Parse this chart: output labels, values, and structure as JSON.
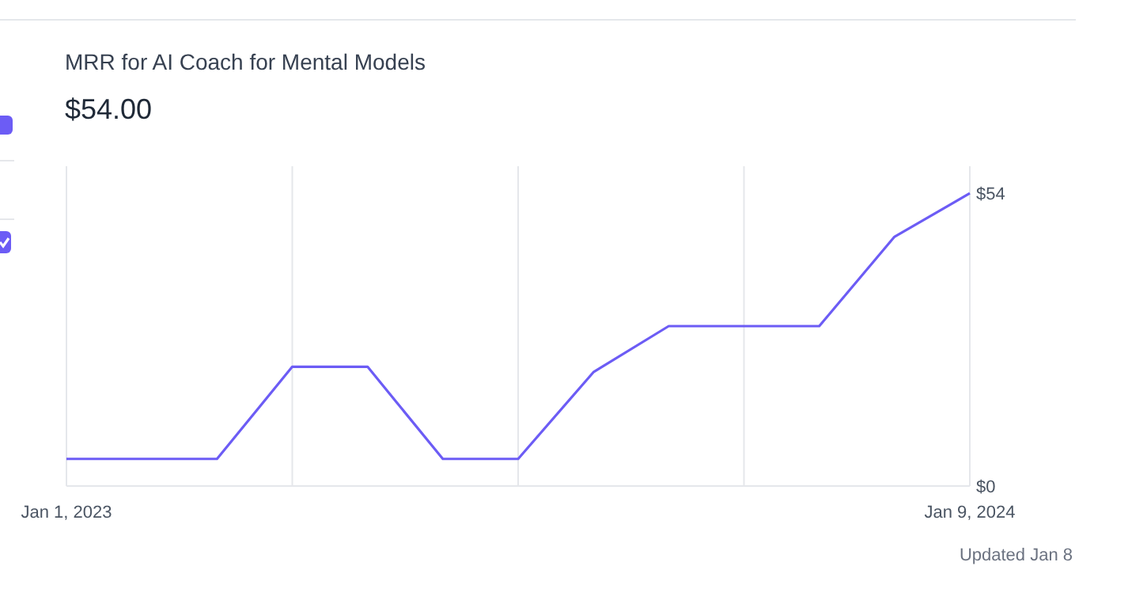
{
  "chart_data": {
    "type": "line",
    "title": "MRR for AI Coach for Mental Models",
    "subtitle": "$54.00",
    "categories": [
      "Jan 1, 2023",
      null,
      null,
      null,
      null,
      null,
      null,
      null,
      null,
      null,
      null,
      null,
      "Jan 9, 2024"
    ],
    "series": [
      {
        "color": "#6c5cf5",
        "values": [
          5,
          5,
          5,
          22,
          22,
          5,
          5,
          21,
          29.5,
          29.5,
          29.5,
          46,
          54
        ]
      }
    ],
    "ylim": [
      0,
      59
    ],
    "yticks": [
      {
        "value": 0,
        "label": "$0"
      },
      {
        "value": 54,
        "label": "$54"
      }
    ],
    "grid": "x",
    "marker": "none",
    "line_style": "solid",
    "annotations": [
      "Updated Jan 8"
    ]
  }
}
